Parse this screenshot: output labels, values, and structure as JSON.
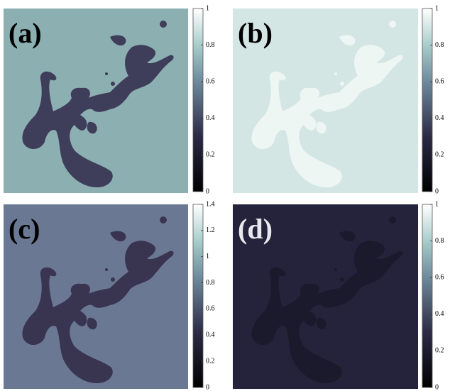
{
  "panels": [
    {
      "label": "(a)",
      "colorbar": {
        "range": [
          0,
          1
        ],
        "ticks": [
          0,
          0.2,
          0.4,
          0.6,
          0.8,
          1
        ]
      }
    },
    {
      "label": "(b)",
      "colorbar": {
        "range": [
          0,
          1
        ],
        "ticks": [
          0,
          0.2,
          0.4,
          0.6,
          0.8,
          1
        ]
      }
    },
    {
      "label": "(c)",
      "colorbar": {
        "range": [
          0,
          1.4
        ],
        "ticks": [
          0,
          0.2,
          0.4,
          0.6,
          0.8,
          1,
          1.2,
          1.4
        ]
      }
    },
    {
      "label": "(d)",
      "colorbar": {
        "range": [
          0,
          1
        ],
        "ticks": [
          0,
          0.2,
          0.4,
          0.6,
          0.8,
          1
        ]
      }
    }
  ]
}
